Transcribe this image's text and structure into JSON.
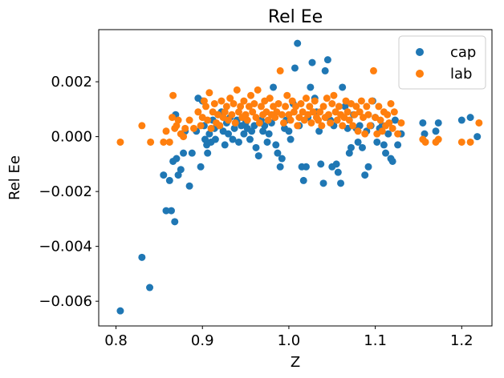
{
  "chart_data": {
    "type": "scatter",
    "title": "Rel Ee",
    "xlabel": "Z",
    "ylabel": "Rel Ee",
    "xlim": [
      0.78,
      1.235
    ],
    "ylim": [
      -0.0069,
      0.0039
    ],
    "xticks": [
      0.8,
      0.9,
      1.0,
      1.1,
      1.2
    ],
    "xtick_labels": [
      "0.8",
      "0.9",
      "1.0",
      "1.1",
      "1.2"
    ],
    "yticks": [
      -0.006,
      -0.004,
      -0.002,
      0.0,
      0.002
    ],
    "ytick_labels": [
      "−0.006",
      "−0.004",
      "−0.002",
      "0.000",
      "0.002"
    ],
    "grid": false,
    "legend_position": "top-right",
    "series": [
      {
        "name": "cap",
        "color": "#1f77b4",
        "points": [
          [
            0.805,
            -0.00635
          ],
          [
            0.83,
            -0.0044
          ],
          [
            0.839,
            -0.0055
          ],
          [
            0.855,
            -0.0014
          ],
          [
            0.858,
            -0.0027
          ],
          [
            0.862,
            -0.0016
          ],
          [
            0.864,
            -0.0027
          ],
          [
            0.866,
            -0.0009
          ],
          [
            0.868,
            -0.0031
          ],
          [
            0.869,
            0.0008
          ],
          [
            0.87,
            -0.0008
          ],
          [
            0.872,
            -0.0014
          ],
          [
            0.875,
            -0.0012
          ],
          [
            0.878,
            -0.0006
          ],
          [
            0.88,
            0.0002
          ],
          [
            0.885,
            -0.0018
          ],
          [
            0.888,
            -0.0006
          ],
          [
            0.893,
            0.0002
          ],
          [
            0.895,
            0.0014
          ],
          [
            0.898,
            -0.0011
          ],
          [
            0.9,
            0.0013
          ],
          [
            0.902,
            0.0004
          ],
          [
            0.903,
            -0.0001
          ],
          [
            0.905,
            -0.0003
          ],
          [
            0.906,
            -0.0006
          ],
          [
            0.908,
            0.0001
          ],
          [
            0.91,
            -0.0002
          ],
          [
            0.912,
            0.0006
          ],
          [
            0.914,
            0.0003
          ],
          [
            0.915,
            -0.0001
          ],
          [
            0.918,
            0.0008
          ],
          [
            0.92,
            0.0004
          ],
          [
            0.922,
            0.0009
          ],
          [
            0.924,
            0.0002
          ],
          [
            0.926,
            -0.0003
          ],
          [
            0.928,
            0.0005
          ],
          [
            0.93,
            0.0001
          ],
          [
            0.932,
            0.0007
          ],
          [
            0.935,
            -0.0001
          ],
          [
            0.937,
            0.0003
          ],
          [
            0.94,
            0.0006
          ],
          [
            0.942,
            -0.0002
          ],
          [
            0.945,
            0.0004
          ],
          [
            0.948,
            0.0001
          ],
          [
            0.95,
            0.0005
          ],
          [
            0.952,
            0.0003
          ],
          [
            0.955,
            -0.0001
          ],
          [
            0.957,
            0.0002
          ],
          [
            0.96,
            0.0004
          ],
          [
            0.962,
            -0.0004
          ],
          [
            0.965,
            -0.0007
          ],
          [
            0.968,
            0.0006
          ],
          [
            0.97,
            0.0002
          ],
          [
            0.972,
            0.0004
          ],
          [
            0.975,
            -0.0002
          ],
          [
            0.977,
            0.0001
          ],
          [
            0.98,
            0.0005
          ],
          [
            0.982,
            0.0018
          ],
          [
            0.985,
            -0.0003
          ],
          [
            0.987,
            -0.0006
          ],
          [
            0.99,
            -0.0011
          ],
          [
            0.992,
            -0.0008
          ],
          [
            0.995,
            0.0003
          ],
          [
            0.997,
            0.0006
          ],
          [
            1.0,
            0.0002
          ],
          [
            1.002,
            -0.0001
          ],
          [
            1.005,
            0.0012
          ],
          [
            1.007,
            0.0025
          ],
          [
            1.01,
            0.0034
          ],
          [
            1.012,
            0.0004
          ],
          [
            1.015,
            -0.0011
          ],
          [
            1.017,
            -0.0016
          ],
          [
            1.02,
            -0.0011
          ],
          [
            1.022,
            0.0007
          ],
          [
            1.025,
            0.0018
          ],
          [
            1.027,
            0.0027
          ],
          [
            1.03,
            0.0014
          ],
          [
            1.032,
            0.0009
          ],
          [
            1.035,
            0.0002
          ],
          [
            1.037,
            -0.001
          ],
          [
            1.04,
            -0.0017
          ],
          [
            1.042,
            0.0024
          ],
          [
            1.045,
            0.0028
          ],
          [
            1.048,
            0.0006
          ],
          [
            1.05,
            -0.0011
          ],
          [
            1.052,
            0.0004
          ],
          [
            1.055,
            -0.001
          ],
          [
            1.057,
            -0.0013
          ],
          [
            1.06,
            -0.0017
          ],
          [
            1.062,
            0.0018
          ],
          [
            1.065,
            0.0011
          ],
          [
            1.068,
            0.0003
          ],
          [
            1.07,
            -0.0006
          ],
          [
            1.072,
            -0.0004
          ],
          [
            1.075,
            0.0008
          ],
          [
            1.078,
            0.0003
          ],
          [
            1.08,
            -0.0002
          ],
          [
            1.082,
            0.0004
          ],
          [
            1.085,
            -0.0004
          ],
          [
            1.088,
            -0.0014
          ],
          [
            1.09,
            0.0002
          ],
          [
            1.092,
            -0.0011
          ],
          [
            1.095,
            0.0004
          ],
          [
            1.097,
            0.0013
          ],
          [
            1.1,
            0.0007
          ],
          [
            1.102,
            -0.0002
          ],
          [
            1.105,
            0.0003
          ],
          [
            1.108,
            0.0004
          ],
          [
            1.11,
            -0.0003
          ],
          [
            1.112,
            -0.0006
          ],
          [
            1.115,
            0.0001
          ],
          [
            1.118,
            -0.0008
          ],
          [
            1.12,
            -0.0009
          ],
          [
            1.123,
            0.0006
          ],
          [
            1.126,
            -0.0003
          ],
          [
            1.13,
            0.0001
          ],
          [
            1.155,
            0.0005
          ],
          [
            1.157,
            0.0001
          ],
          [
            1.17,
            0.0002
          ],
          [
            1.173,
            0.0005
          ],
          [
            1.2,
            0.0006
          ],
          [
            1.21,
            0.0007
          ],
          [
            1.218,
            0.0
          ]
        ]
      },
      {
        "name": "lab",
        "color": "#ff7f0e",
        "points": [
          [
            0.805,
            -0.0002
          ],
          [
            0.83,
            0.0004
          ],
          [
            0.84,
            -0.0002
          ],
          [
            0.855,
            -0.0002
          ],
          [
            0.858,
            0.0002
          ],
          [
            0.862,
            -0.0002
          ],
          [
            0.865,
            0.0007
          ],
          [
            0.866,
            0.0015
          ],
          [
            0.868,
            0.0003
          ],
          [
            0.87,
            0.0004
          ],
          [
            0.872,
            0.0006
          ],
          [
            0.875,
            0.0001
          ],
          [
            0.878,
            0.0
          ],
          [
            0.88,
            0.0003
          ],
          [
            0.885,
            0.0006
          ],
          [
            0.89,
            0.0003
          ],
          [
            0.895,
            0.0009
          ],
          [
            0.898,
            0.0004
          ],
          [
            0.9,
            0.0007
          ],
          [
            0.902,
            0.0013
          ],
          [
            0.904,
            0.0011
          ],
          [
            0.906,
            0.0006
          ],
          [
            0.908,
            0.0016
          ],
          [
            0.91,
            0.0003
          ],
          [
            0.912,
            0.0009
          ],
          [
            0.914,
            0.0012
          ],
          [
            0.916,
            0.0005
          ],
          [
            0.918,
            0.0008
          ],
          [
            0.92,
            0.0004
          ],
          [
            0.922,
            0.0013
          ],
          [
            0.924,
            0.0007
          ],
          [
            0.926,
            0.0009
          ],
          [
            0.928,
            0.0011
          ],
          [
            0.93,
            0.0006
          ],
          [
            0.932,
            0.0014
          ],
          [
            0.934,
            0.0008
          ],
          [
            0.936,
            0.0012
          ],
          [
            0.938,
            0.0005
          ],
          [
            0.94,
            0.0017
          ],
          [
            0.942,
            0.0009
          ],
          [
            0.944,
            0.0011
          ],
          [
            0.946,
            0.0007
          ],
          [
            0.948,
            0.0013
          ],
          [
            0.95,
            0.0008
          ],
          [
            0.952,
            0.0006
          ],
          [
            0.954,
            0.0011
          ],
          [
            0.956,
            0.0015
          ],
          [
            0.958,
            0.0009
          ],
          [
            0.96,
            0.0012
          ],
          [
            0.962,
            0.0007
          ],
          [
            0.964,
            0.0017
          ],
          [
            0.966,
            0.0005
          ],
          [
            0.968,
            0.0011
          ],
          [
            0.97,
            0.0008
          ],
          [
            0.972,
            0.0013
          ],
          [
            0.974,
            0.0009
          ],
          [
            0.976,
            0.0006
          ],
          [
            0.978,
            0.0014
          ],
          [
            0.98,
            0.0008
          ],
          [
            0.982,
            0.0011
          ],
          [
            0.984,
            0.0007
          ],
          [
            0.986,
            0.0009
          ],
          [
            0.988,
            0.0012
          ],
          [
            0.99,
            0.0024
          ],
          [
            0.992,
            0.0008
          ],
          [
            0.994,
            0.0005
          ],
          [
            0.996,
            0.0011
          ],
          [
            0.998,
            0.0015
          ],
          [
            1.0,
            0.0008
          ],
          [
            1.002,
            0.0006
          ],
          [
            1.004,
            0.0013
          ],
          [
            1.006,
            0.0009
          ],
          [
            1.008,
            0.0011
          ],
          [
            1.01,
            0.0004
          ],
          [
            1.012,
            0.0007
          ],
          [
            1.014,
            0.0012
          ],
          [
            1.016,
            0.0009
          ],
          [
            1.018,
            0.0006
          ],
          [
            1.02,
            0.0014
          ],
          [
            1.022,
            0.0008
          ],
          [
            1.024,
            0.0011
          ],
          [
            1.026,
            0.0005
          ],
          [
            1.028,
            0.0009
          ],
          [
            1.03,
            0.0013
          ],
          [
            1.032,
            0.0007
          ],
          [
            1.034,
            0.0006
          ],
          [
            1.036,
            0.0009
          ],
          [
            1.038,
            0.0004
          ],
          [
            1.04,
            0.0011
          ],
          [
            1.042,
            0.0007
          ],
          [
            1.044,
            0.0014
          ],
          [
            1.046,
            0.0008
          ],
          [
            1.048,
            0.0005
          ],
          [
            1.05,
            0.0012
          ],
          [
            1.052,
            0.0015
          ],
          [
            1.054,
            0.0009
          ],
          [
            1.056,
            0.0006
          ],
          [
            1.058,
            0.0011
          ],
          [
            1.06,
            0.0008
          ],
          [
            1.062,
            0.0004
          ],
          [
            1.064,
            0.0007
          ],
          [
            1.066,
            0.0013
          ],
          [
            1.068,
            0.0009
          ],
          [
            1.07,
            0.0006
          ],
          [
            1.072,
            0.0012
          ],
          [
            1.074,
            0.0004
          ],
          [
            1.076,
            0.0008
          ],
          [
            1.078,
            0.0011
          ],
          [
            1.08,
            0.0002
          ],
          [
            1.082,
            0.0009
          ],
          [
            1.084,
            0.0013
          ],
          [
            1.086,
            0.0007
          ],
          [
            1.088,
            0.0001
          ],
          [
            1.09,
            0.0011
          ],
          [
            1.092,
            0.0008
          ],
          [
            1.094,
            0.0004
          ],
          [
            1.096,
            0.0013
          ],
          [
            1.098,
            0.0024
          ],
          [
            1.1,
            0.0007
          ],
          [
            1.102,
            0.0001
          ],
          [
            1.104,
            0.0011
          ],
          [
            1.106,
            0.0006
          ],
          [
            1.108,
            0.0002
          ],
          [
            1.11,
            0.0009
          ],
          [
            1.112,
            0.0004
          ],
          [
            1.114,
            0.0008
          ],
          [
            1.116,
            0.0005
          ],
          [
            1.118,
            0.0012
          ],
          [
            1.12,
            0.0003
          ],
          [
            1.122,
            0.0009
          ],
          [
            1.126,
            0.0001
          ],
          [
            1.13,
            0.0005
          ],
          [
            1.155,
            -0.0001
          ],
          [
            1.158,
            -0.0002
          ],
          [
            1.17,
            -0.0002
          ],
          [
            1.173,
            -0.0001
          ],
          [
            1.2,
            -0.0002
          ],
          [
            1.21,
            -0.0002
          ],
          [
            1.22,
            0.0005
          ]
        ]
      }
    ]
  }
}
